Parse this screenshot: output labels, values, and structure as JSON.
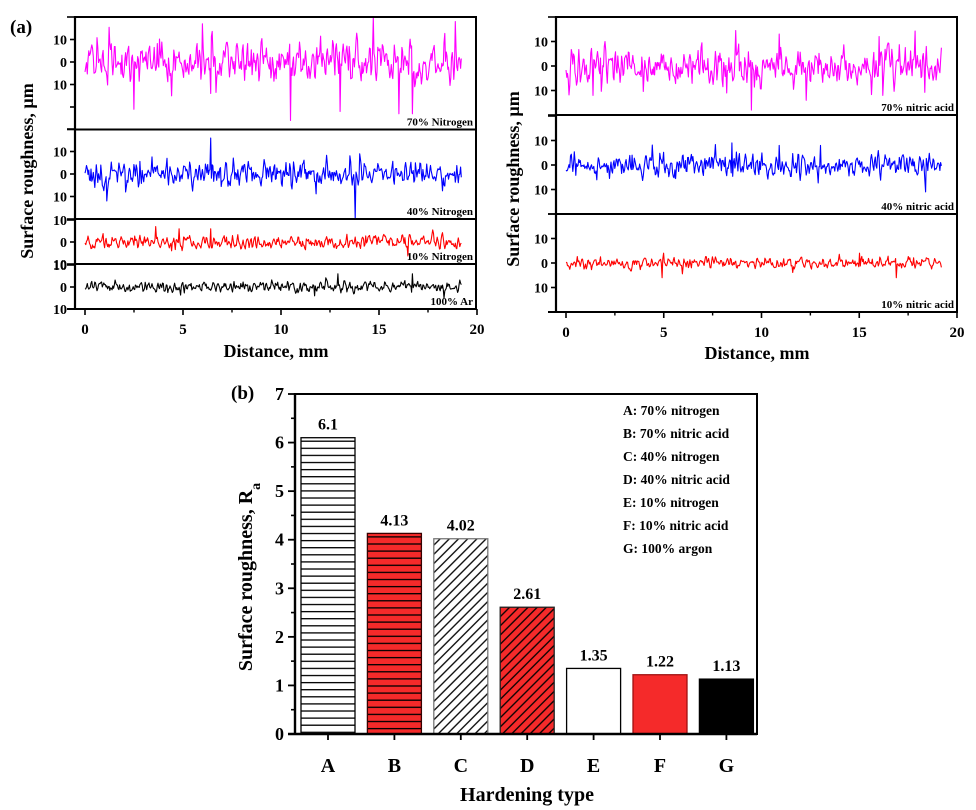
{
  "figure": {
    "panel_a_label": "(a)",
    "panel_b_label": "(b)"
  },
  "chart_data": [
    {
      "type": "line",
      "panel": "(a) left",
      "title": "",
      "xlabel": "Distance, mm",
      "ylabel": "Surface roughness, µm",
      "xlim": [
        0,
        20
      ],
      "xticks": [
        0,
        5,
        10,
        15,
        20
      ],
      "xtick_labels": [
        "0",
        "5",
        "10",
        "15",
        "20"
      ],
      "ytick_values": [
        10,
        0,
        -10
      ],
      "ytick_labels": [
        "10",
        "0",
        "10"
      ],
      "grid": false,
      "series": [
        {
          "name": "70% Nitrogen",
          "color": "#ff00ff",
          "ylim": [
            -30,
            20
          ],
          "x_range": [
            0,
            19.2
          ],
          "amplitude": 6,
          "peaks": [
            [
              2.5,
              -21
            ],
            [
              4.4,
              -15
            ],
            [
              6.0,
              17
            ],
            [
              6.4,
              -14
            ],
            [
              10.5,
              -26
            ],
            [
              13.0,
              -22
            ],
            [
              14.7,
              20
            ],
            [
              16.0,
              -23
            ],
            [
              16.7,
              -23
            ],
            [
              18.9,
              18
            ]
          ]
        },
        {
          "name": "40% Nitrogen",
          "color": "#0000ff",
          "ylim": [
            -20,
            20
          ],
          "x_range": [
            0,
            19.2
          ],
          "amplitude": 3.6,
          "peaks": [
            [
              1.1,
              -12
            ],
            [
              6.4,
              16
            ],
            [
              13.8,
              -20
            ],
            [
              14.0,
              9
            ]
          ]
        },
        {
          "name": "10% Nitrogen",
          "color": "#ff0000",
          "ylim": [
            -10,
            10
          ],
          "x_range": [
            0,
            19.2
          ],
          "amplitude": 2.0,
          "peaks": [
            [
              3.6,
              7
            ],
            [
              4.4,
              -4
            ],
            [
              4.8,
              6
            ],
            [
              6.4,
              6
            ]
          ]
        },
        {
          "name": "100% Ar",
          "color": "#000000",
          "ylim": [
            -10,
            10
          ],
          "x_range": [
            0,
            19.2
          ],
          "amplitude": 1.6,
          "peaks": [
            [
              11.7,
              -4
            ],
            [
              12.9,
              6
            ],
            [
              16.7,
              6
            ]
          ]
        }
      ]
    },
    {
      "type": "line",
      "panel": "(a) right",
      "title": "",
      "xlabel": "Distance, mm",
      "ylabel": "Surface roughness, µm",
      "xlim": [
        0,
        20
      ],
      "xticks": [
        0,
        5,
        10,
        15,
        20
      ],
      "xtick_labels": [
        "0",
        "5",
        "10",
        "15",
        "20"
      ],
      "ytick_values": [
        10,
        0,
        -10
      ],
      "ytick_labels": [
        "10",
        "0",
        "10"
      ],
      "grid": false,
      "series": [
        {
          "name": "70% nitric acid",
          "color": "#ff00ff",
          "ylim": [
            -20,
            20
          ],
          "x_range": [
            0,
            19.2
          ],
          "amplitude": 5.5,
          "peaks": [
            [
              1.4,
              -12
            ],
            [
              8.2,
              -11
            ],
            [
              9.5,
              -18
            ],
            [
              10.9,
              13
            ],
            [
              12.3,
              -14
            ],
            [
              16.0,
              12
            ],
            [
              16.2,
              -12
            ]
          ]
        },
        {
          "name": "40% nitric acid",
          "color": "#0000ff",
          "ylim": [
            -20,
            20
          ],
          "x_range": [
            0,
            19.2
          ],
          "amplitude": 3.2,
          "peaks": [
            [
              8.5,
              9
            ],
            [
              10.9,
              8
            ],
            [
              13.0,
              8
            ],
            [
              18.4,
              -11
            ]
          ]
        },
        {
          "name": "10% nitric acid",
          "color": "#ff0000",
          "ylim": [
            -20,
            20
          ],
          "x_range": [
            0,
            19.2
          ],
          "amplitude": 1.5,
          "peaks": [
            [
              4.9,
              -6
            ],
            [
              5.0,
              4
            ],
            [
              15.0,
              4
            ],
            [
              16.9,
              -6
            ]
          ]
        }
      ]
    },
    {
      "type": "bar",
      "panel": "(b)",
      "title": "",
      "categories": [
        "A",
        "B",
        "C",
        "D",
        "E",
        "F",
        "G"
      ],
      "values": [
        6.1,
        4.13,
        4.02,
        2.61,
        1.35,
        1.22,
        1.13
      ],
      "data_labels": [
        "6.1",
        "4.13",
        "4.02",
        "2.61",
        "1.35",
        "1.22",
        "1.13"
      ],
      "xlabel": "Hardening type",
      "ylabel": "Surface roughness, R",
      "ylabel_subscript": "a",
      "ylim": [
        0,
        7
      ],
      "yticks": [
        0,
        1,
        2,
        3,
        4,
        5,
        6,
        7
      ],
      "ytick_labels": [
        "0",
        "1",
        "2",
        "3",
        "4",
        "5",
        "6",
        "7"
      ],
      "grid": false,
      "bar_styles": [
        {
          "fill": "#ffffff",
          "pattern": "horizontal-lines",
          "edge": "#000000"
        },
        {
          "fill": "#f52a2a",
          "pattern": "horizontal-lines",
          "edge": "#3a0000"
        },
        {
          "fill": "#ffffff",
          "pattern": "diagonal-lines",
          "edge": "#777777"
        },
        {
          "fill": "#f52a2a",
          "pattern": "diagonal-lines",
          "edge": "#222222"
        },
        {
          "fill": "#ffffff",
          "pattern": "solid",
          "edge": "#000000"
        },
        {
          "fill": "#f52a2a",
          "pattern": "solid",
          "edge": "#a01010"
        },
        {
          "fill": "#000000",
          "pattern": "solid",
          "edge": "#000000"
        }
      ],
      "legend": {
        "placement": "top-right",
        "entries": [
          "A: 70% nitrogen",
          "B: 70% nitric acid",
          "C: 40% nitrogen",
          "D: 40% nitric acid",
          "E: 10% nitrogen",
          "F: 10% nitric acid",
          "G: 100% argon"
        ]
      }
    }
  ]
}
